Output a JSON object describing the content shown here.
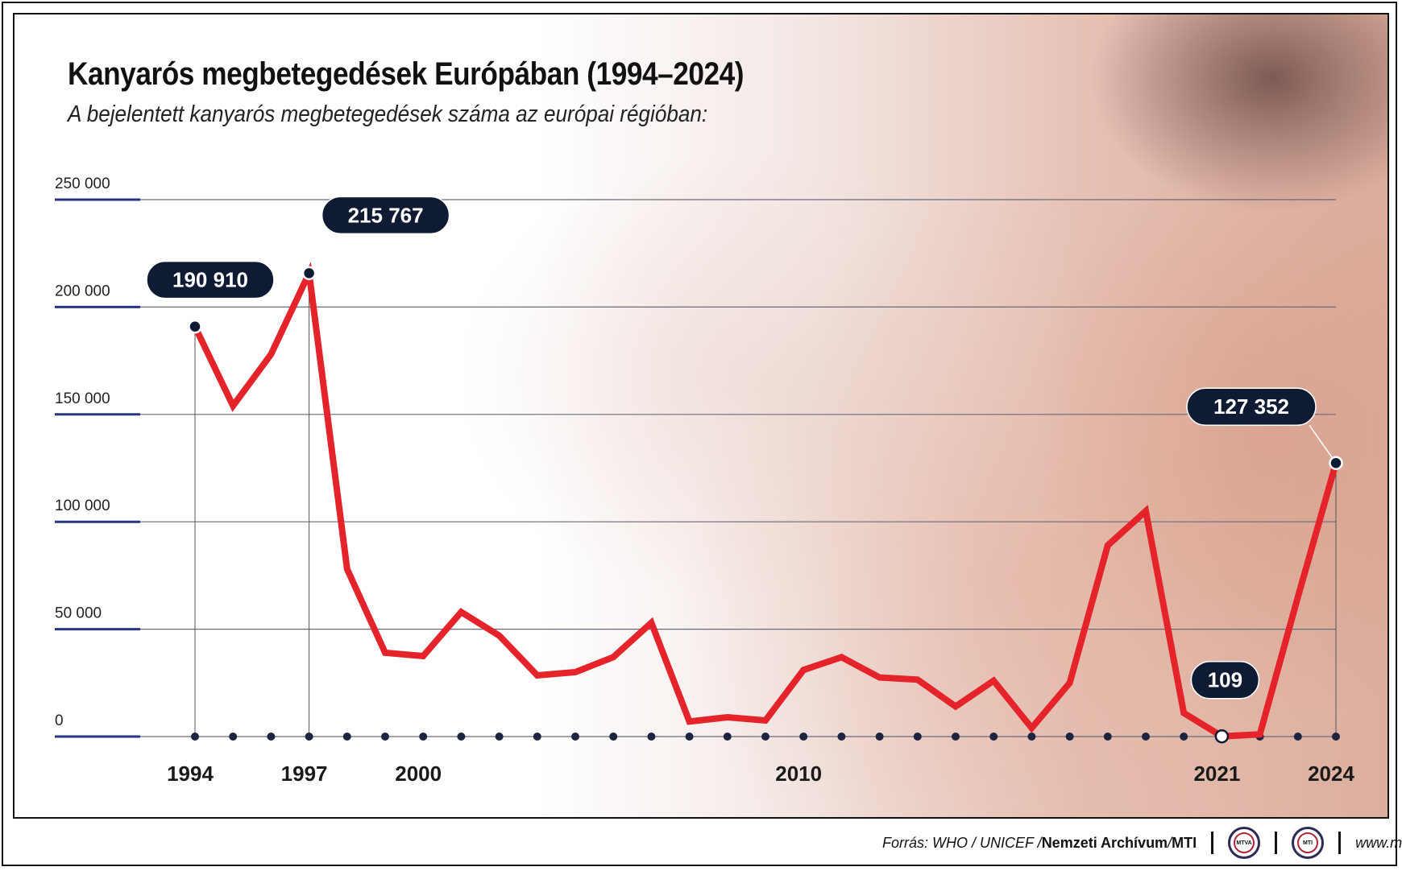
{
  "title": "Kanyarós megbetegedések Európában (1994–2024)",
  "subtitle": "A bejelentett kanyarós megbetegedések száma az európai régióban:",
  "colors": {
    "line": "#e4232b",
    "callout": "#0f1b33",
    "gridline": "#6a6a7a",
    "axis_accent": "#2a3580"
  },
  "chart_data": {
    "type": "line",
    "title": "Kanyarós megbetegedések Európában (1994–2024)",
    "xlabel": "",
    "ylabel": "",
    "ylim": [
      0,
      250000
    ],
    "yticks": [
      0,
      50000,
      100000,
      150000,
      200000,
      250000
    ],
    "ytick_labels": [
      "0",
      "50 000",
      "100 000",
      "150 000",
      "200 000",
      "250 000"
    ],
    "xlim": [
      1994,
      2024
    ],
    "xtick_labels": [
      {
        "year": 1994,
        "label": "1994"
      },
      {
        "year": 1997,
        "label": "1997"
      },
      {
        "year": 2000,
        "label": "2000"
      },
      {
        "year": 2010,
        "label": "2010"
      },
      {
        "year": 2021,
        "label": "2021"
      },
      {
        "year": 2024,
        "label": "2024"
      }
    ],
    "x": [
      1994,
      1995,
      1996,
      1997,
      1998,
      1999,
      2000,
      2001,
      2002,
      2003,
      2004,
      2005,
      2006,
      2007,
      2008,
      2009,
      2010,
      2011,
      2012,
      2013,
      2014,
      2015,
      2016,
      2017,
      2018,
      2019,
      2020,
      2021,
      2022,
      2023,
      2024
    ],
    "series": [
      {
        "name": "Bejelentett kanyarós megbetegedések",
        "values": [
          190910,
          154000,
          178000,
          215767,
          78000,
          39000,
          37500,
          58000,
          47000,
          28500,
          30000,
          37000,
          53000,
          7000,
          9000,
          7500,
          31000,
          37000,
          27500,
          26500,
          14000,
          26000,
          4000,
          25000,
          89000,
          105000,
          11000,
          109,
          1000,
          65000,
          127352
        ]
      }
    ],
    "callouts": [
      {
        "year": 1994,
        "label": "190 910"
      },
      {
        "year": 1997,
        "label": "215 767"
      },
      {
        "year": 2021,
        "label": "109"
      },
      {
        "year": 2024,
        "label": "127 352"
      }
    ],
    "grid": true
  },
  "footer": {
    "source_prefix": "Forrás: WHO / UNICEF / ",
    "source_archive": "Nemzeti Archívum",
    "source_sep": " / ",
    "source_mti": "MTI",
    "logo1": "MTVA",
    "logo2": "MTI",
    "url": "www.mti.hu"
  }
}
